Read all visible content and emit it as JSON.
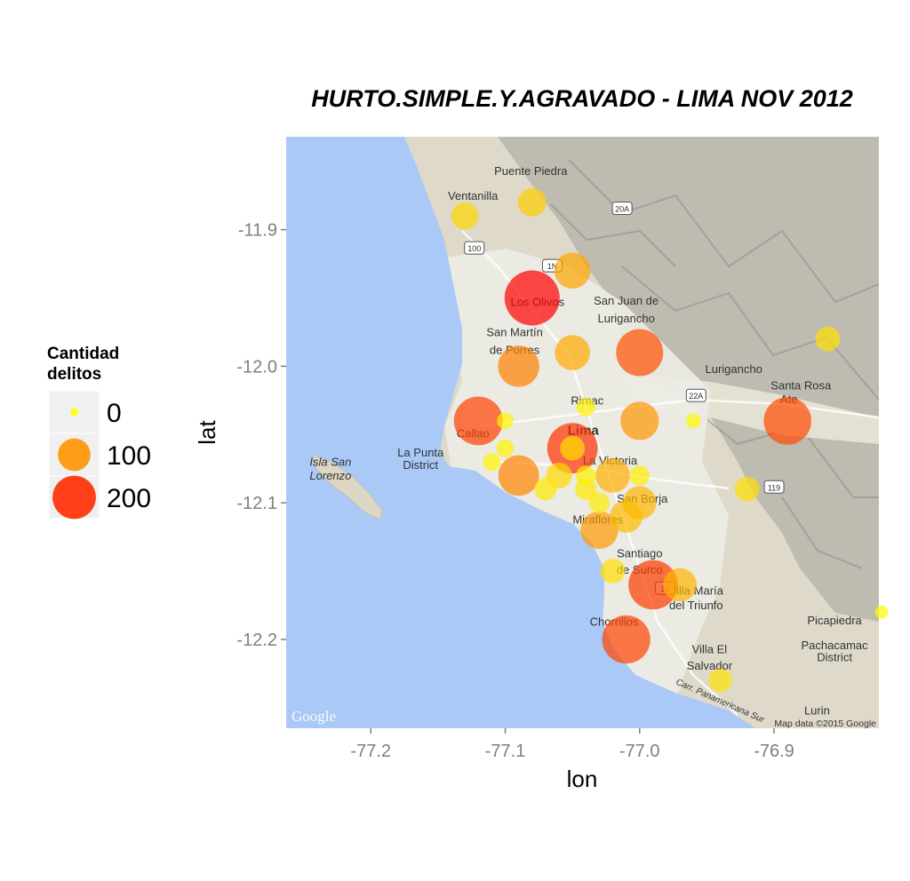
{
  "chart_data": {
    "type": "scatter",
    "title": "HURTO.SIMPLE.Y.AGRAVADO - LIMA NOV 2012",
    "xlabel": "lon",
    "ylabel": "lat",
    "xlim": [
      -77.263,
      -76.822
    ],
    "ylim": [
      -12.265,
      -11.832
    ],
    "x_ticks": [
      -77.2,
      -77.1,
      -77.0,
      -76.9
    ],
    "y_ticks": [
      -11.9,
      -12.0,
      -12.1,
      -12.2
    ],
    "x_tick_labels": [
      "-77.2",
      "-77.1",
      "-77.0",
      "-76.9"
    ],
    "y_tick_labels": [
      "-11.9",
      "-12.0",
      "-12.1",
      "-12.2"
    ],
    "legend": {
      "title_line1": "Cantidad",
      "title_line2": "delitos",
      "position": "left",
      "entries": [
        {
          "label": "0",
          "value": 0
        },
        {
          "label": "100",
          "value": 100
        },
        {
          "label": "200",
          "value": 200
        }
      ]
    },
    "color_scale": {
      "low": "#ffff00",
      "high": "#ff0000",
      "max": 240
    },
    "points": [
      {
        "lon": -77.08,
        "lat": -11.95,
        "count": 240
      },
      {
        "lon": -77.05,
        "lat": -12.06,
        "count": 195
      },
      {
        "lon": -77.12,
        "lat": -12.04,
        "count": 180
      },
      {
        "lon": -76.99,
        "lat": -12.16,
        "count": 185
      },
      {
        "lon": -77.01,
        "lat": -12.2,
        "count": 175
      },
      {
        "lon": -77.0,
        "lat": -11.99,
        "count": 165
      },
      {
        "lon": -76.89,
        "lat": -12.04,
        "count": 170
      },
      {
        "lon": -77.09,
        "lat": -12.0,
        "count": 120
      },
      {
        "lon": -77.09,
        "lat": -12.08,
        "count": 115
      },
      {
        "lon": -77.0,
        "lat": -12.04,
        "count": 100
      },
      {
        "lon": -77.03,
        "lat": -12.12,
        "count": 95
      },
      {
        "lon": -77.05,
        "lat": -11.93,
        "count": 85
      },
      {
        "lon": -77.05,
        "lat": -11.99,
        "count": 80
      },
      {
        "lon": -77.02,
        "lat": -12.08,
        "count": 75
      },
      {
        "lon": -77.0,
        "lat": -12.1,
        "count": 70
      },
      {
        "lon": -77.01,
        "lat": -12.11,
        "count": 65
      },
      {
        "lon": -76.97,
        "lat": -12.16,
        "count": 70
      },
      {
        "lon": -77.08,
        "lat": -11.88,
        "count": 45
      },
      {
        "lon": -77.13,
        "lat": -11.89,
        "count": 40
      },
      {
        "lon": -77.06,
        "lat": -12.08,
        "count": 35
      },
      {
        "lon": -77.05,
        "lat": -12.06,
        "count": 30
      },
      {
        "lon": -76.86,
        "lat": -11.98,
        "count": 30
      },
      {
        "lon": -76.92,
        "lat": -12.09,
        "count": 30
      },
      {
        "lon": -77.02,
        "lat": -12.15,
        "count": 30
      },
      {
        "lon": -76.94,
        "lat": -12.23,
        "count": 25
      },
      {
        "lon": -77.07,
        "lat": -12.09,
        "count": 22
      },
      {
        "lon": -77.04,
        "lat": -12.09,
        "count": 20
      },
      {
        "lon": -77.03,
        "lat": -12.1,
        "count": 18
      },
      {
        "lon": -77.0,
        "lat": -12.08,
        "count": 15
      },
      {
        "lon": -77.04,
        "lat": -12.08,
        "count": 15
      },
      {
        "lon": -77.04,
        "lat": -12.03,
        "count": 12
      },
      {
        "lon": -77.1,
        "lat": -12.06,
        "count": 10
      },
      {
        "lon": -77.11,
        "lat": -12.07,
        "count": 10
      },
      {
        "lon": -77.1,
        "lat": -12.04,
        "count": 8
      },
      {
        "lon": -76.96,
        "lat": -12.04,
        "count": 5
      },
      {
        "lon": -76.82,
        "lat": -12.18,
        "count": 3
      }
    ]
  },
  "map": {
    "labels": [
      {
        "text": "Puente Piedra",
        "lon": -77.081,
        "lat": -11.86
      },
      {
        "text": "Ventanilla",
        "lon": -77.124,
        "lat": -11.878
      },
      {
        "text": "Los Olivos",
        "lon": -77.076,
        "lat": -11.956
      },
      {
        "text": "San Juan de",
        "lon": -77.01,
        "lat": -11.955
      },
      {
        "text": "Lurigancho",
        "lon": -77.01,
        "lat": -11.968
      },
      {
        "text": "San Martín",
        "lon": -77.093,
        "lat": -11.978
      },
      {
        "text": "de Porres",
        "lon": -77.093,
        "lat": -11.991
      },
      {
        "text": "Lurigancho",
        "lon": -76.93,
        "lat": -12.005
      },
      {
        "text": "Santa Rosa",
        "lon": -76.88,
        "lat": -12.017
      },
      {
        "text": "Ate",
        "lon": -76.889,
        "lat": -12.027
      },
      {
        "text": "Rimac",
        "lon": -77.039,
        "lat": -12.028
      },
      {
        "text": "Callao",
        "lon": -77.124,
        "lat": -12.052
      },
      {
        "text": "Lima",
        "lon": -77.042,
        "lat": -12.05
      },
      {
        "text": "La Punta",
        "lon": -77.163,
        "lat": -12.066
      },
      {
        "text": "District",
        "lon": -77.163,
        "lat": -12.075
      },
      {
        "text": "Isla San",
        "lon": -77.23,
        "lat": -12.073
      },
      {
        "text": "Lorenzo",
        "lon": -77.23,
        "lat": -12.083
      },
      {
        "text": "La Victoria",
        "lon": -77.022,
        "lat": -12.072
      },
      {
        "text": "San Borja",
        "lon": -76.998,
        "lat": -12.1
      },
      {
        "text": "Miraflores",
        "lon": -77.031,
        "lat": -12.115
      },
      {
        "text": "Santiago",
        "lon": -77.0,
        "lat": -12.14
      },
      {
        "text": "de Surco",
        "lon": -77.0,
        "lat": -12.152
      },
      {
        "text": "Villa María",
        "lon": -76.958,
        "lat": -12.167
      },
      {
        "text": "del Triunfo",
        "lon": -76.958,
        "lat": -12.178
      },
      {
        "text": "Chorrillos",
        "lon": -77.019,
        "lat": -12.19
      },
      {
        "text": "Villa El",
        "lon": -76.948,
        "lat": -12.21
      },
      {
        "text": "Salvador",
        "lon": -76.948,
        "lat": -12.222
      },
      {
        "text": "Picapiedra",
        "lon": -76.855,
        "lat": -12.189
      },
      {
        "text": "Pachacamac",
        "lon": -76.855,
        "lat": -12.207
      },
      {
        "text": "District",
        "lon": -76.855,
        "lat": -12.216
      },
      {
        "text": "Lurin",
        "lon": -76.868,
        "lat": -12.255
      }
    ],
    "shields": [
      {
        "text": "1N",
        "lon": -77.065,
        "lat": -11.927
      },
      {
        "text": "20A",
        "lon": -77.013,
        "lat": -11.885
      },
      {
        "text": "100",
        "lon": -77.123,
        "lat": -11.914
      },
      {
        "text": "22A",
        "lon": -76.958,
        "lat": -12.022
      },
      {
        "text": "119",
        "lon": -76.9,
        "lat": -12.089
      },
      {
        "text": "1S",
        "lon": -76.981,
        "lat": -12.163
      }
    ],
    "road_label": "Carr. Panamericana Sur",
    "google_logo": "Google",
    "attribution": "Map data ©2015 Google"
  }
}
